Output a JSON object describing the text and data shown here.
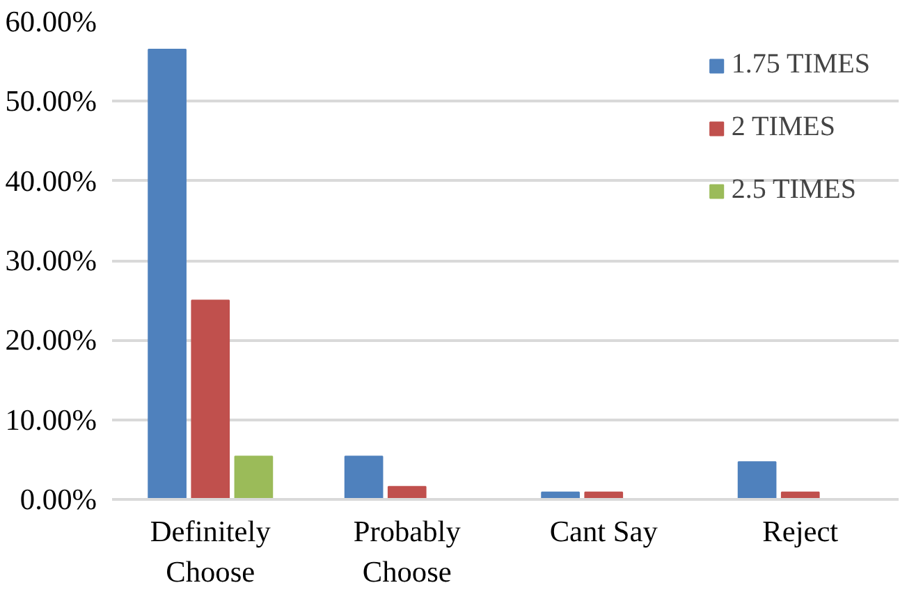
{
  "chart_data": {
    "type": "bar",
    "categories": [
      "Definitely\nChoose",
      "Probably\nChoose",
      "Cant Say",
      "Reject"
    ],
    "series": [
      {
        "name": "1.75 TIMES",
        "color": "#4f81bd",
        "values": [
          56.5,
          5.4,
          0.9,
          4.7
        ]
      },
      {
        "name": "2 TIMES",
        "color": "#c0504d",
        "values": [
          25.0,
          1.6,
          0.9,
          0.9
        ]
      },
      {
        "name": "2.5 TIMES",
        "color": "#9bbb59",
        "values": [
          5.4,
          0,
          0,
          0
        ]
      }
    ],
    "ylim": [
      0,
      60
    ],
    "yticks": [
      {
        "value": 0,
        "label": "0.00%"
      },
      {
        "value": 10,
        "label": "10.00%"
      },
      {
        "value": 20,
        "label": "20.00%"
      },
      {
        "value": 30,
        "label": "30.00%"
      },
      {
        "value": 40,
        "label": "40.00%"
      },
      {
        "value": 50,
        "label": "50.00%"
      },
      {
        "value": 60,
        "label": "60.00%"
      }
    ],
    "grid": "y",
    "legend": "top right"
  }
}
